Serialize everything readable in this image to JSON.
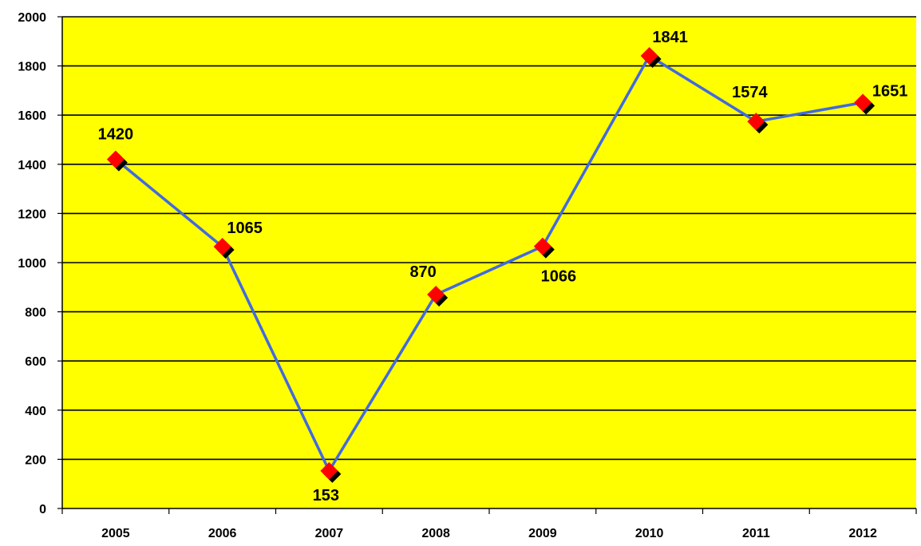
{
  "chart_data": {
    "type": "line",
    "categories": [
      "2005",
      "2006",
      "2007",
      "2008",
      "2009",
      "2010",
      "2011",
      "2012"
    ],
    "series": [
      {
        "values": [
          1420,
          1065,
          153,
          870,
          1066,
          1841,
          1574,
          1651
        ]
      }
    ],
    "title": "",
    "xlabel": "",
    "ylabel": "",
    "ylim": [
      0,
      2000
    ],
    "yticks": [
      "0",
      "200",
      "400",
      "600",
      "800",
      "1000",
      "1200",
      "1400",
      "1600",
      "1800",
      "2000"
    ],
    "data_labels": [
      "1420",
      "1065",
      "153",
      "870",
      "1066",
      "1841",
      "1574",
      "1651"
    ],
    "grid": true,
    "colors": {
      "plot_background": "#FFFF00",
      "line": "#4169E1",
      "marker": "#FF0000",
      "marker_shadow": "#000000",
      "gridline": "#000000"
    }
  }
}
